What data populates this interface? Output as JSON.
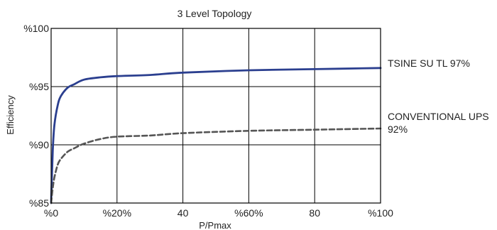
{
  "chart_data": {
    "type": "line",
    "title": "3 Level Topology",
    "xlabel": "P/Pmax",
    "ylabel": "Efficiency",
    "xlim": [
      0,
      100
    ],
    "ylim": [
      85,
      100
    ],
    "grid": true,
    "x_ticks": [
      {
        "value": 0,
        "label": "%0"
      },
      {
        "value": 20,
        "label": "%20%"
      },
      {
        "value": 40,
        "label": "40"
      },
      {
        "value": 60,
        "label": "%60%"
      },
      {
        "value": 80,
        "label": "80"
      },
      {
        "value": 100,
        "label": "%100"
      }
    ],
    "y_ticks": [
      {
        "value": 85,
        "label": "%85"
      },
      {
        "value": 90,
        "label": "%90"
      },
      {
        "value": 95,
        "label": "%95"
      },
      {
        "value": 100,
        "label": "%100"
      }
    ],
    "series": [
      {
        "name": "TSINE SU TL 97%",
        "color": "#2b3f8f",
        "style": "solid",
        "x": [
          0,
          0.5,
          1,
          2,
          3,
          5,
          7,
          10,
          15,
          20,
          30,
          40,
          60,
          80,
          100
        ],
        "y": [
          85,
          89.5,
          91.7,
          93.4,
          94.2,
          94.9,
          95.2,
          95.6,
          95.8,
          95.9,
          96.0,
          96.2,
          96.4,
          96.5,
          96.6
        ]
      },
      {
        "name": "CONVENTIONAL UPS 92%",
        "label_lines": [
          "CONVENTIONAL UPS",
          "92%"
        ],
        "color": "#555555",
        "style": "dashed",
        "x": [
          0,
          0.5,
          1,
          2,
          3,
          5,
          7,
          10,
          15,
          20,
          30,
          40,
          60,
          80,
          100
        ],
        "y": [
          85,
          86.3,
          87.2,
          88.3,
          88.8,
          89.4,
          89.7,
          90.1,
          90.5,
          90.7,
          90.8,
          91.0,
          91.2,
          91.3,
          91.4
        ]
      }
    ]
  }
}
